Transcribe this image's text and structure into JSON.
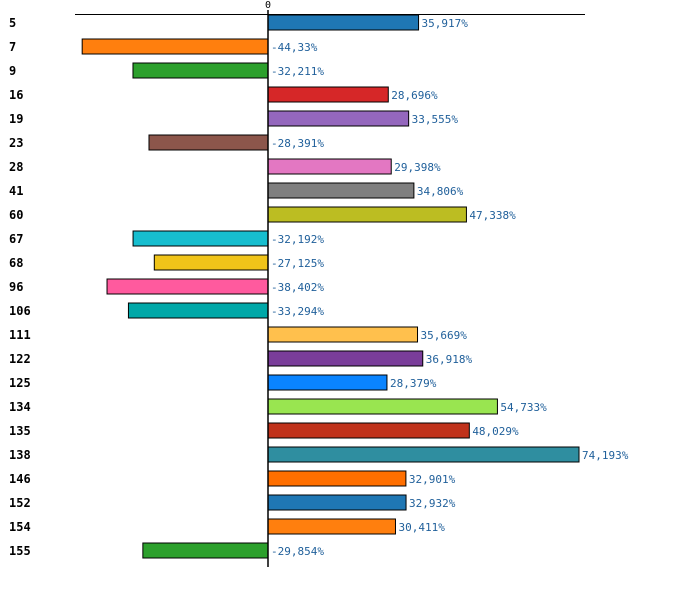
{
  "chart_data": {
    "type": "bar",
    "orientation": "horizontal",
    "title": "",
    "xlabel": "",
    "ylabel": "",
    "zero_tick_label": "0",
    "categories": [
      "5",
      "7",
      "9",
      "16",
      "19",
      "23",
      "28",
      "41",
      "60",
      "67",
      "68",
      "96",
      "106",
      "111",
      "122",
      "125",
      "134",
      "135",
      "138",
      "146",
      "152",
      "154",
      "155"
    ],
    "values": [
      35.917,
      -44.33,
      -32.211,
      28.696,
      33.555,
      -28.391,
      29.398,
      34.806,
      47.338,
      -32.192,
      -27.125,
      -38.402,
      -33.294,
      35.669,
      36.918,
      28.379,
      54.733,
      48.029,
      74.193,
      32.901,
      32.932,
      30.411,
      -29.854
    ],
    "value_labels": [
      "35,917%",
      "-44,33%",
      "-32,211%",
      "28,696%",
      "33,555%",
      "-28,391%",
      "29,398%",
      "34,806%",
      "47,338%",
      "-32,192%",
      "-27,125%",
      "-38,402%",
      "-33,294%",
      "35,669%",
      "36,918%",
      "28,379%",
      "54,733%",
      "48,029%",
      "74,193%",
      "32,901%",
      "32,932%",
      "30,411%",
      "-29,854%"
    ],
    "colors": [
      "#1f77b4",
      "#ff7f0e",
      "#2ca02c",
      "#d62728",
      "#9467bd",
      "#8c564b",
      "#e377c2",
      "#7f7f7f",
      "#bcbd22",
      "#17becf",
      "#f0c419",
      "#ff5a9e",
      "#00a8a8",
      "#ffc04d",
      "#7a3d9a",
      "#0a84ff",
      "#99e550",
      "#c0321b",
      "#2f8ea0",
      "#ff6f00",
      "#1f77b4",
      "#ff7f0e",
      "#2ca02c"
    ],
    "xlim": [
      -45.5,
      75.5
    ],
    "grid": false,
    "legend": "none"
  }
}
